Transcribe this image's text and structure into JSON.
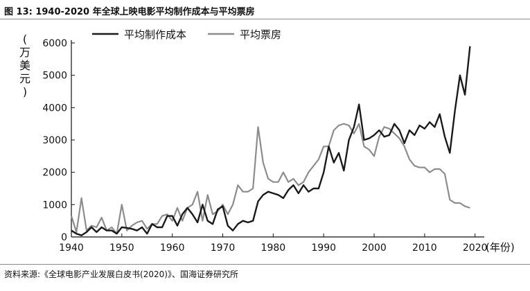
{
  "figure": {
    "title": "图 13:  1940-2020 年全球上映电影平均制作成本与平均票房",
    "source": "资料来源:《全球电影产业发展白皮书(2020)》、国海证券研究所"
  },
  "chart_data": {
    "type": "line",
    "title": "",
    "ylabel": "(万美元)",
    "xlabel": "(年份)",
    "xlim": [
      1940,
      2021
    ],
    "ylim": [
      0,
      6000
    ],
    "x_ticks": [
      1940,
      1950,
      1960,
      1970,
      1980,
      1990,
      2000,
      2010,
      2020
    ],
    "y_ticks": [
      0,
      1000,
      2000,
      3000,
      4000,
      5000,
      6000
    ],
    "legend_position": "top",
    "grid": false,
    "series": [
      {
        "name": "平均制作成本",
        "color": "#1a1a1a",
        "points": [
          [
            1940,
            200
          ],
          [
            1941,
            100
          ],
          [
            1942,
            50
          ],
          [
            1943,
            150
          ],
          [
            1944,
            300
          ],
          [
            1945,
            150
          ],
          [
            1946,
            300
          ],
          [
            1947,
            200
          ],
          [
            1948,
            200
          ],
          [
            1949,
            100
          ],
          [
            1950,
            300
          ],
          [
            1951,
            280
          ],
          [
            1952,
            250
          ],
          [
            1953,
            200
          ],
          [
            1954,
            300
          ],
          [
            1955,
            100
          ],
          [
            1956,
            400
          ],
          [
            1957,
            300
          ],
          [
            1958,
            300
          ],
          [
            1959,
            650
          ],
          [
            1960,
            650
          ],
          [
            1961,
            350
          ],
          [
            1962,
            700
          ],
          [
            1963,
            900
          ],
          [
            1964,
            700
          ],
          [
            1965,
            450
          ],
          [
            1966,
            1000
          ],
          [
            1967,
            500
          ],
          [
            1968,
            400
          ],
          [
            1969,
            850
          ],
          [
            1970,
            950
          ],
          [
            1971,
            350
          ],
          [
            1972,
            200
          ],
          [
            1973,
            400
          ],
          [
            1974,
            500
          ],
          [
            1975,
            450
          ],
          [
            1976,
            500
          ],
          [
            1977,
            1100
          ],
          [
            1978,
            1300
          ],
          [
            1979,
            1400
          ],
          [
            1980,
            1350
          ],
          [
            1981,
            1300
          ],
          [
            1982,
            1200
          ],
          [
            1983,
            1450
          ],
          [
            1984,
            1600
          ],
          [
            1985,
            1350
          ],
          [
            1986,
            1600
          ],
          [
            1987,
            1400
          ],
          [
            1988,
            1500
          ],
          [
            1989,
            1500
          ],
          [
            1990,
            2000
          ],
          [
            1991,
            2800
          ],
          [
            1992,
            2300
          ],
          [
            1993,
            2600
          ],
          [
            1994,
            2050
          ],
          [
            1995,
            3000
          ],
          [
            1996,
            3400
          ],
          [
            1997,
            4100
          ],
          [
            1998,
            3000
          ],
          [
            1999,
            3050
          ],
          [
            2000,
            3150
          ],
          [
            2001,
            3300
          ],
          [
            2002,
            3100
          ],
          [
            2003,
            3150
          ],
          [
            2004,
            3500
          ],
          [
            2005,
            3300
          ],
          [
            2006,
            2900
          ],
          [
            2007,
            3300
          ],
          [
            2008,
            3150
          ],
          [
            2009,
            3450
          ],
          [
            2010,
            3350
          ],
          [
            2011,
            3550
          ],
          [
            2012,
            3400
          ],
          [
            2013,
            3800
          ],
          [
            2014,
            3100
          ],
          [
            2015,
            2600
          ],
          [
            2016,
            3900
          ],
          [
            2017,
            5000
          ],
          [
            2018,
            4400
          ],
          [
            2019,
            5900
          ]
        ]
      },
      {
        "name": "平均票房",
        "color": "#8c8c8c",
        "points": [
          [
            1940,
            650
          ],
          [
            1941,
            150
          ],
          [
            1942,
            1200
          ],
          [
            1943,
            200
          ],
          [
            1944,
            350
          ],
          [
            1945,
            300
          ],
          [
            1946,
            600
          ],
          [
            1947,
            200
          ],
          [
            1948,
            300
          ],
          [
            1949,
            100
          ],
          [
            1950,
            1000
          ],
          [
            1951,
            200
          ],
          [
            1952,
            350
          ],
          [
            1953,
            450
          ],
          [
            1954,
            500
          ],
          [
            1955,
            250
          ],
          [
            1956,
            400
          ],
          [
            1957,
            400
          ],
          [
            1958,
            650
          ],
          [
            1959,
            700
          ],
          [
            1960,
            500
          ],
          [
            1961,
            900
          ],
          [
            1962,
            500
          ],
          [
            1963,
            900
          ],
          [
            1964,
            1000
          ],
          [
            1965,
            1400
          ],
          [
            1966,
            500
          ],
          [
            1967,
            1300
          ],
          [
            1968,
            700
          ],
          [
            1969,
            800
          ],
          [
            1970,
            1000
          ],
          [
            1971,
            700
          ],
          [
            1972,
            1000
          ],
          [
            1973,
            1600
          ],
          [
            1974,
            1400
          ],
          [
            1975,
            1400
          ],
          [
            1976,
            1500
          ],
          [
            1977,
            3400
          ],
          [
            1978,
            2300
          ],
          [
            1979,
            1800
          ],
          [
            1980,
            1700
          ],
          [
            1981,
            1700
          ],
          [
            1982,
            2000
          ],
          [
            1983,
            1700
          ],
          [
            1984,
            1800
          ],
          [
            1985,
            1600
          ],
          [
            1986,
            1700
          ],
          [
            1987,
            2000
          ],
          [
            1988,
            2200
          ],
          [
            1989,
            2400
          ],
          [
            1990,
            2800
          ],
          [
            1991,
            2800
          ],
          [
            1992,
            3300
          ],
          [
            1993,
            3450
          ],
          [
            1994,
            3500
          ],
          [
            1995,
            3450
          ],
          [
            1996,
            3200
          ],
          [
            1997,
            3500
          ],
          [
            1998,
            2800
          ],
          [
            1999,
            2700
          ],
          [
            2000,
            2500
          ],
          [
            2001,
            3100
          ],
          [
            2002,
            3400
          ],
          [
            2003,
            3350
          ],
          [
            2004,
            3200
          ],
          [
            2005,
            3050
          ],
          [
            2006,
            2800
          ],
          [
            2007,
            2400
          ],
          [
            2008,
            2200
          ],
          [
            2009,
            2150
          ],
          [
            2010,
            2150
          ],
          [
            2011,
            2000
          ],
          [
            2012,
            2100
          ],
          [
            2013,
            2100
          ],
          [
            2014,
            1950
          ],
          [
            2015,
            1150
          ],
          [
            2016,
            1050
          ],
          [
            2017,
            1050
          ],
          [
            2018,
            950
          ],
          [
            2019,
            900
          ]
        ]
      }
    ]
  }
}
